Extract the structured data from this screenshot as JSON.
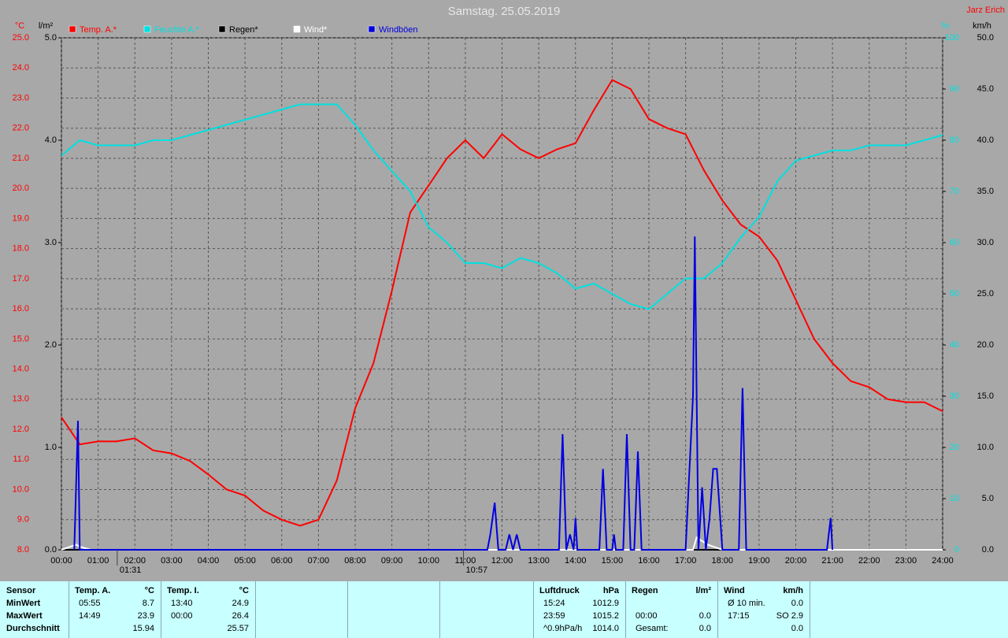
{
  "chart_data": {
    "type": "line",
    "title": "Samstag. 25.05.2019",
    "author": "Jarz Erich",
    "ylabel": "°C",
    "y2label": "l/m²",
    "y3label": "%",
    "y4label": "km/h",
    "xlim": [
      0,
      24
    ],
    "xticks": [
      {
        "value": 0,
        "label": "00:00"
      },
      {
        "value": 1,
        "label": "01:00"
      },
      {
        "value": 2,
        "label": "02:00"
      },
      {
        "value": 3,
        "label": "03:00"
      },
      {
        "value": 4,
        "label": "04:00"
      },
      {
        "value": 5,
        "label": "05:00"
      },
      {
        "value": 6,
        "label": "06:00"
      },
      {
        "value": 7,
        "label": "07:00"
      },
      {
        "value": 8,
        "label": "08:00"
      },
      {
        "value": 9,
        "label": "09:00"
      },
      {
        "value": 10,
        "label": "10:00"
      },
      {
        "value": 11,
        "label": "11:00"
      },
      {
        "value": 12,
        "label": "12:00"
      },
      {
        "value": 13,
        "label": "13:00"
      },
      {
        "value": 14,
        "label": "14:00"
      },
      {
        "value": 15,
        "label": "15:00"
      },
      {
        "value": 16,
        "label": "16:00"
      },
      {
        "value": 17,
        "label": "17:00"
      },
      {
        "value": 18,
        "label": "18:00"
      },
      {
        "value": 19,
        "label": "19:00"
      },
      {
        "value": 20,
        "label": "20:00"
      },
      {
        "value": 21,
        "label": "21:00"
      },
      {
        "value": 22,
        "label": "22:00"
      },
      {
        "value": 23,
        "label": "23:00"
      },
      {
        "value": 24,
        "label": "24:00"
      }
    ],
    "ylim": [
      8,
      25
    ],
    "yticks": [
      {
        "value": 8,
        "label": "8.0"
      },
      {
        "value": 9,
        "label": "9.0"
      },
      {
        "value": 10,
        "label": "10.0"
      },
      {
        "value": 11,
        "label": "11.0"
      },
      {
        "value": 12,
        "label": "12.0"
      },
      {
        "value": 13,
        "label": "13.0"
      },
      {
        "value": 14,
        "label": "14.0"
      },
      {
        "value": 15,
        "label": "15.0"
      },
      {
        "value": 16,
        "label": "16.0"
      },
      {
        "value": 17,
        "label": "17.0"
      },
      {
        "value": 18,
        "label": "18.0"
      },
      {
        "value": 19,
        "label": "19.0"
      },
      {
        "value": 20,
        "label": "20.0"
      },
      {
        "value": 21,
        "label": "21.0"
      },
      {
        "value": 22,
        "label": "22.0"
      },
      {
        "value": 23,
        "label": "23.0"
      },
      {
        "value": 24,
        "label": "24.0"
      },
      {
        "value": 25,
        "label": "25.0"
      }
    ],
    "y2lim": [
      0,
      5
    ],
    "y2ticks": [
      {
        "value": 0,
        "label": "0.0"
      },
      {
        "value": 1,
        "label": "1.0"
      },
      {
        "value": 2,
        "label": "2.0"
      },
      {
        "value": 3,
        "label": "3.0"
      },
      {
        "value": 4,
        "label": "4.0"
      },
      {
        "value": 5,
        "label": "5.0"
      }
    ],
    "y3lim": [
      0,
      100
    ],
    "y3ticks": [
      0,
      10,
      20,
      30,
      40,
      50,
      60,
      70,
      80,
      90,
      100
    ],
    "y4lim": [
      0,
      50
    ],
    "y4ticks": [
      {
        "value": 0,
        "label": "0.0"
      },
      {
        "value": 5,
        "label": "5.0"
      },
      {
        "value": 10,
        "label": "10.0"
      },
      {
        "value": 15,
        "label": "15.0"
      },
      {
        "value": 20,
        "label": "20.0"
      },
      {
        "value": 25,
        "label": "25.0"
      },
      {
        "value": 30,
        "label": "30.0"
      },
      {
        "value": 35,
        "label": "35.0"
      },
      {
        "value": 40,
        "label": "40.0"
      },
      {
        "value": 45,
        "label": "45.0"
      },
      {
        "value": 50,
        "label": "50.0"
      }
    ],
    "grid": true,
    "x": [
      0,
      0.5,
      1,
      1.5,
      2,
      2.5,
      3,
      3.5,
      4,
      4.5,
      5,
      5.5,
      6,
      6.5,
      7,
      7.5,
      8,
      8.5,
      9,
      9.5,
      10,
      10.5,
      11,
      11.5,
      12,
      12.5,
      13,
      13.5,
      14,
      14.5,
      15,
      15.5,
      16,
      16.5,
      17,
      17.5,
      18,
      18.5,
      19,
      19.5,
      20,
      20.5,
      21,
      21.5,
      22,
      22.5,
      23,
      23.5,
      24
    ],
    "series": [
      {
        "name": "Temp. A.*",
        "color": "#ff0000",
        "axis": "y",
        "values": [
          12.4,
          11.5,
          11.6,
          11.6,
          11.7,
          11.3,
          11.2,
          10.95,
          10.5,
          10.0,
          9.8,
          9.3,
          9.0,
          8.8,
          9.0,
          10.3,
          12.7,
          14.2,
          16.6,
          19.2,
          20.1,
          21.0,
          21.6,
          21.0,
          21.8,
          21.3,
          21.0,
          21.3,
          21.5,
          22.6,
          23.6,
          23.3,
          22.3,
          22.0,
          21.8,
          20.6,
          19.6,
          18.8,
          18.4,
          17.6,
          16.3,
          15.0,
          14.2,
          13.6,
          13.4,
          13.0,
          12.9,
          12.9,
          12.6
        ]
      },
      {
        "name": "Feuchte A.*",
        "color": "#00e0e0",
        "axis": "y3",
        "values": [
          77,
          80,
          79,
          79,
          79,
          80,
          80,
          81,
          82,
          83,
          84,
          85,
          86,
          87,
          87,
          87,
          83,
          78,
          74,
          70,
          63,
          60,
          56,
          56,
          55,
          57,
          56,
          54,
          51,
          52,
          50,
          48,
          47,
          50,
          53,
          53,
          56,
          61,
          65,
          72,
          76,
          77,
          78,
          78,
          79,
          79,
          79,
          80,
          81
        ]
      },
      {
        "name": "Regen*",
        "color": "#000000",
        "axis": "y2",
        "x": [
          0,
          24
        ],
        "values": [
          0,
          0
        ]
      },
      {
        "name": "Wind*",
        "color": "#ffffff",
        "axis": "y4",
        "x": [
          0,
          0.4,
          0.5,
          0.8,
          17.2,
          17.3,
          17.6,
          18.0,
          24
        ],
        "values": [
          0,
          0.5,
          0.3,
          0,
          0,
          1.2,
          0.5,
          0,
          0
        ]
      },
      {
        "name": "Windböen",
        "color": "#0000e0",
        "axis": "y4",
        "x": [
          0.35,
          0.45,
          0.5,
          11.6,
          11.68,
          11.8,
          11.9,
          12.1,
          12.2,
          12.3,
          12.4,
          12.5,
          13.55,
          13.65,
          13.75,
          13.85,
          13.95,
          14.0,
          14.05,
          14.65,
          14.75,
          14.85,
          15.0,
          15.05,
          15.1,
          15.3,
          15.4,
          15.5,
          15.6,
          15.7,
          15.8,
          17.0,
          17.2,
          17.25,
          17.35,
          17.45,
          17.55,
          17.65,
          17.75,
          17.85,
          18.0,
          18.45,
          18.55,
          18.65,
          20.85,
          20.95,
          21.0
        ],
        "values": [
          0,
          12.6,
          0,
          0,
          1.5,
          4.6,
          0,
          0,
          1.5,
          0,
          1.5,
          0,
          0,
          11.3,
          0,
          1.5,
          0,
          3.1,
          0,
          0,
          7.9,
          0,
          0,
          1.5,
          0,
          0,
          11.3,
          0,
          0,
          9.6,
          0,
          0,
          15,
          30.6,
          0,
          6.1,
          0,
          3,
          7.9,
          7.9,
          0,
          0,
          15.8,
          0,
          0,
          3.1,
          0
        ]
      }
    ],
    "annotations": [
      {
        "x": 1.52,
        "label": "01:31"
      },
      {
        "x": 10.95,
        "label": "10:57"
      }
    ]
  },
  "stats_table": {
    "sensor": [
      "Sensor",
      "MinWert",
      "MaxWert",
      "Durchschnitt"
    ],
    "groups": [
      {
        "name": "Temp. A.",
        "unit": "°C",
        "rows": [
          [
            "05:55",
            "8.7"
          ],
          [
            "14:49",
            "23.9"
          ],
          [
            null,
            "15.94"
          ]
        ]
      },
      {
        "name": "Temp. I.",
        "unit": "°C",
        "rows": [
          [
            "13:40",
            "24.9"
          ],
          [
            "00:00",
            "26.4"
          ],
          [
            null,
            "25.57"
          ]
        ]
      },
      {
        "name": "Luftdruck",
        "unit": "hPa",
        "rows": [
          [
            "15:24",
            "1012.9"
          ],
          [
            "23:59",
            "1015.2"
          ],
          [
            "^0.9hPa/h",
            "1014.0"
          ]
        ]
      },
      {
        "name": "Regen",
        "unit": "l/m²",
        "rows": [
          [
            null,
            null
          ],
          [
            "00:00",
            "0.0"
          ],
          [
            "Gesamt:",
            "0.0"
          ]
        ]
      },
      {
        "name": "Wind",
        "unit": "km/h",
        "rows": [
          [
            "Ø 10 min.",
            "0.0"
          ],
          [
            "17:15",
            "SO 2.9"
          ],
          [
            null,
            "0.0"
          ]
        ]
      }
    ]
  }
}
